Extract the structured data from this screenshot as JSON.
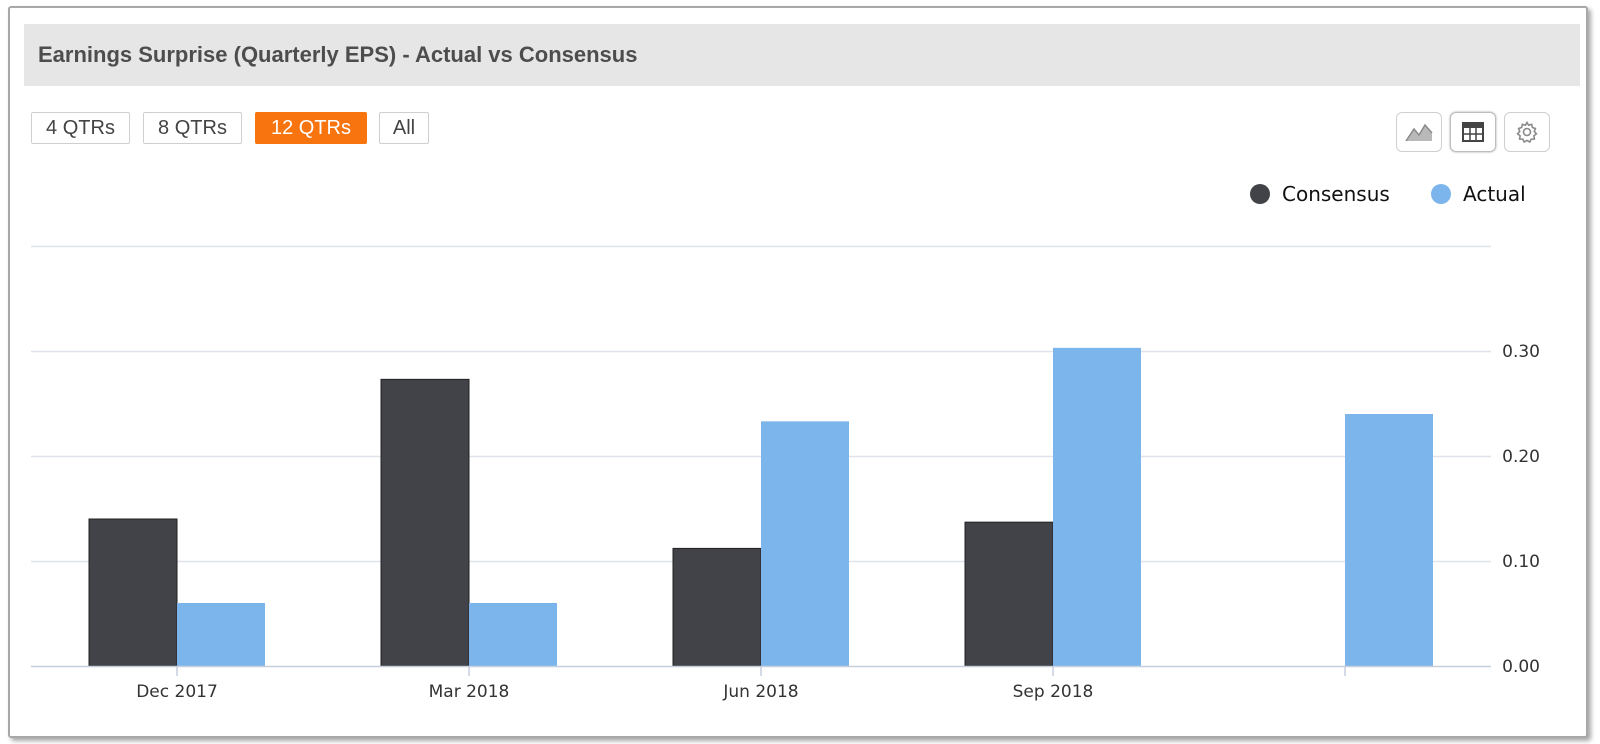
{
  "header": {
    "title": "Earnings Surprise (Quarterly EPS) - Actual vs Consensus"
  },
  "range_buttons": [
    {
      "label": "4 QTRs",
      "active": false
    },
    {
      "label": "8 QTRs",
      "active": false
    },
    {
      "label": "12 QTRs",
      "active": true
    },
    {
      "label": "All",
      "active": false
    }
  ],
  "toolbar": {
    "chart_icon": "area-chart-icon",
    "table_icon": "table-icon",
    "settings_icon": "gear-icon"
  },
  "colors": {
    "accent": "#f7740f",
    "consensus": "#424348",
    "actual": "#7cb5ec",
    "grid": "#e0e4ea",
    "axis": "#c6cfdc"
  },
  "chart_data": {
    "type": "bar",
    "categories": [
      "Dec 2017",
      "Mar 2018",
      "Jun 2018",
      "Sep 2018",
      ""
    ],
    "series": [
      {
        "name": "Consensus",
        "values": [
          0.14,
          0.273,
          0.112,
          0.137,
          null
        ]
      },
      {
        "name": "Actual",
        "values": [
          0.06,
          0.06,
          0.233,
          0.303,
          0.24
        ]
      }
    ],
    "y_axis_side": "right",
    "yticks": [
      0.0,
      0.1,
      0.2,
      0.3
    ],
    "ytick_labels": [
      "0.00",
      "0.10",
      "0.20",
      "0.30"
    ],
    "ylim": [
      0,
      0.4
    ],
    "grid": true,
    "legend_position": "top-right"
  }
}
